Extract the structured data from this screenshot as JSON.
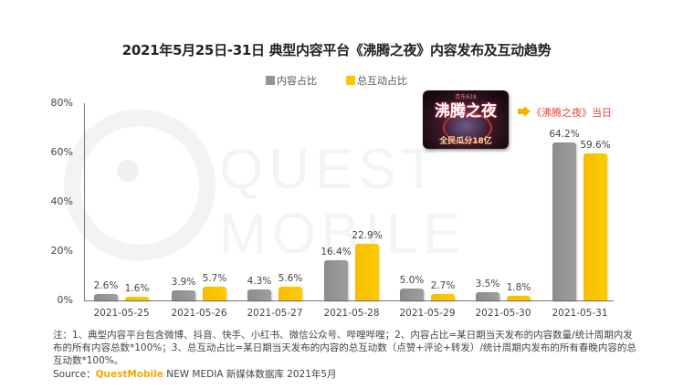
{
  "title": "2021年5月25日-31日 典型内容平台《沸腾之夜》内容发布及互动趋势",
  "legend": [
    {
      "label": "内容占比",
      "color": "#959595"
    },
    {
      "label": "总互动占比",
      "color": "#FFC600"
    }
  ],
  "watermark": "QUEST MOBILE",
  "y_axis": [
    "80%",
    "60%",
    "40%",
    "20%",
    "0%"
  ],
  "event": {
    "image_text_top": "京东618",
    "image_text_main": "沸腾之夜",
    "image_text_bottom": "全民瓜分18亿",
    "annotation": "《沸腾之夜》当日"
  },
  "note": "注：1、典型内容平台包含微博、抖音、快手、小红书、微信公众号、哔哩哔哩；2、内容占比=某日期当天发布的内容数量/统计周期内发布的所有内容总数*100%；3、总互动占比=某日期当天发布的内容的总互动数（点赞+评论+转发）/统计周期内发布的所有春晚内容的总互动数*100%。",
  "source": {
    "prefix": "Source：",
    "brand": "QuestMobile",
    "suffix": " NEW MEDIA 新媒体数据库 2021年5月"
  },
  "chart_data": {
    "type": "bar",
    "title": "2021年5月25日-31日 典型内容平台《沸腾之夜》内容发布及互动趋势",
    "categories": [
      "2021-05-25",
      "2021-05-26",
      "2021-05-27",
      "2021-05-28",
      "2021-05-29",
      "2021-05-30",
      "2021-05-31"
    ],
    "series": [
      {
        "name": "内容占比",
        "values": [
          2.6,
          3.9,
          4.3,
          16.4,
          5.0,
          3.5,
          64.2
        ],
        "labels": [
          "2.6%",
          "3.9%",
          "4.3%",
          "16.4%",
          "5.0%",
          "3.5%",
          "64.2%"
        ],
        "color": "#959595"
      },
      {
        "name": "总互动占比",
        "values": [
          1.6,
          5.7,
          5.6,
          22.9,
          2.7,
          1.8,
          59.6
        ],
        "labels": [
          "1.6%",
          "5.7%",
          "5.6%",
          "22.9%",
          "2.7%",
          "1.8%",
          "59.6%"
        ],
        "color": "#FFC600"
      }
    ],
    "xlabel": "",
    "ylabel": "",
    "ylim": [
      0,
      80
    ],
    "yticks": [
      "0%",
      "20%",
      "40%",
      "60%",
      "80%"
    ],
    "grid": false,
    "legend_position": "top",
    "annotations": [
      "《沸腾之夜》当日 (2021-05-31)"
    ]
  }
}
